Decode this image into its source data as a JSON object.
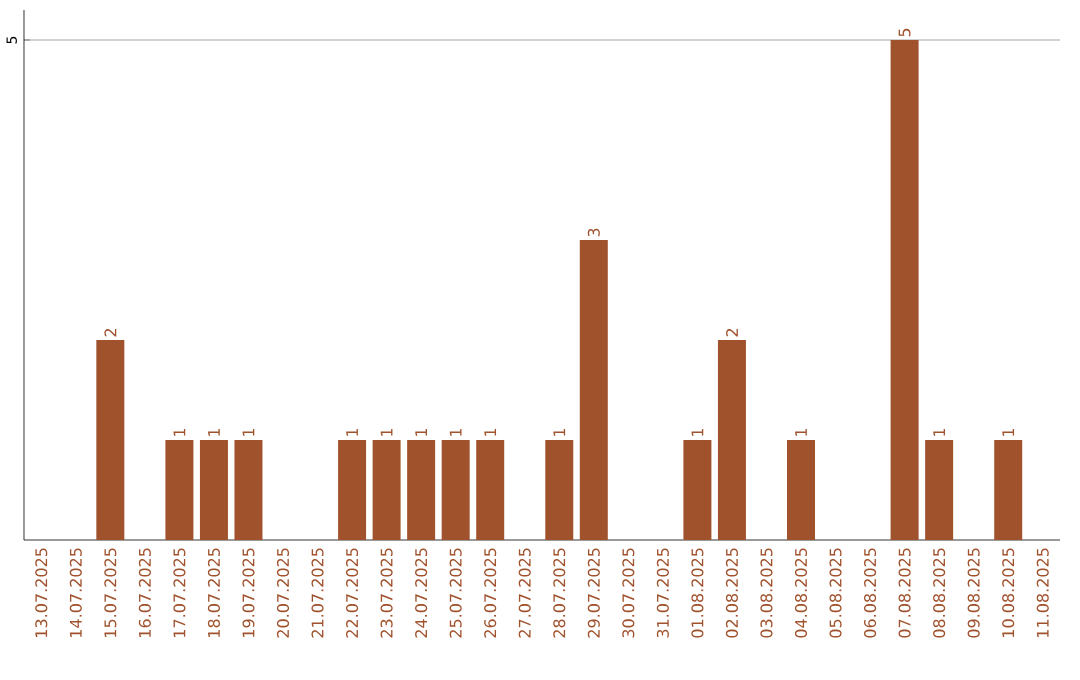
{
  "chart_data": {
    "type": "bar",
    "categories": [
      "13.07.2025",
      "14.07.2025",
      "15.07.2025",
      "16.07.2025",
      "17.07.2025",
      "18.07.2025",
      "19.07.2025",
      "20.07.2025",
      "21.07.2025",
      "22.07.2025",
      "23.07.2025",
      "24.07.2025",
      "25.07.2025",
      "26.07.2025",
      "27.07.2025",
      "28.07.2025",
      "29.07.2025",
      "30.07.2025",
      "31.07.2025",
      "01.08.2025",
      "02.08.2025",
      "03.08.2025",
      "04.08.2025",
      "05.08.2025",
      "06.08.2025",
      "07.08.2025",
      "08.08.2025",
      "09.08.2025",
      "10.08.2025",
      "11.08.2025"
    ],
    "values": [
      0,
      0,
      2,
      0,
      1,
      1,
      1,
      0,
      0,
      1,
      1,
      1,
      1,
      1,
      0,
      1,
      3,
      0,
      0,
      1,
      2,
      0,
      1,
      0,
      0,
      5,
      1,
      0,
      1,
      0
    ],
    "value_labels": [
      null,
      null,
      "2",
      null,
      "1",
      "1",
      "1",
      null,
      null,
      "1",
      "1",
      "1",
      "1",
      "1",
      null,
      "1",
      "3",
      null,
      null,
      "1",
      "2",
      null,
      "1",
      null,
      null,
      "5",
      "1",
      null,
      "1",
      null
    ],
    "color": "#a0522d",
    "ylim": [
      0,
      5.3
    ],
    "yticks": [
      5
    ],
    "grid": "y"
  }
}
